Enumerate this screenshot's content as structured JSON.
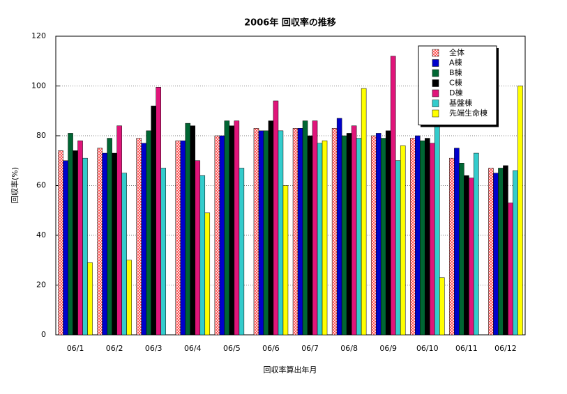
{
  "chart_data": {
    "type": "bar",
    "title": "2006年 回収率の推移",
    "x_label": "回収率算出年月",
    "y_label": "回収率(%)",
    "categories": [
      "06/1",
      "06/2",
      "06/3",
      "06/4",
      "06/5",
      "06/6",
      "06/7",
      "06/8",
      "06/9",
      "06/10",
      "06/11",
      "06/12"
    ],
    "series": [
      {
        "name": "全体",
        "color": "#ff3030",
        "values": [
          74,
          75,
          79,
          78,
          80,
          83,
          83,
          83,
          80,
          79,
          71,
          67
        ]
      },
      {
        "name": "A棟",
        "color": "#0000cc",
        "values": [
          70,
          73,
          77,
          78,
          80,
          82,
          83,
          87,
          81,
          80,
          75,
          65
        ]
      },
      {
        "name": "B棟",
        "color": "#006633",
        "values": [
          81,
          79,
          82,
          85,
          86,
          82,
          86,
          80,
          79,
          78,
          69,
          67
        ]
      },
      {
        "name": "C棟",
        "color": "#000000",
        "values": [
          74,
          73,
          92,
          84,
          84,
          86,
          80,
          81,
          82,
          79,
          64,
          68
        ]
      },
      {
        "name": "D棟",
        "color": "#e0157a",
        "values": [
          78,
          84,
          99.5,
          70,
          86,
          94,
          86,
          84,
          112,
          77,
          63,
          53
        ]
      },
      {
        "name": "基盤棟",
        "color": "#33cccc",
        "values": [
          71,
          65,
          67,
          64,
          67,
          82,
          77,
          79,
          70,
          85,
          73,
          66
        ]
      },
      {
        "name": "先端生命棟",
        "color": "#ffff00",
        "values": [
          29,
          30,
          null,
          49,
          null,
          60,
          78,
          99,
          76,
          23,
          null,
          100
        ]
      }
    ],
    "ylim": [
      0,
      120
    ],
    "yticks": [
      0,
      20,
      40,
      60,
      80,
      100,
      120
    ],
    "grid": true,
    "legend": "top-right"
  }
}
